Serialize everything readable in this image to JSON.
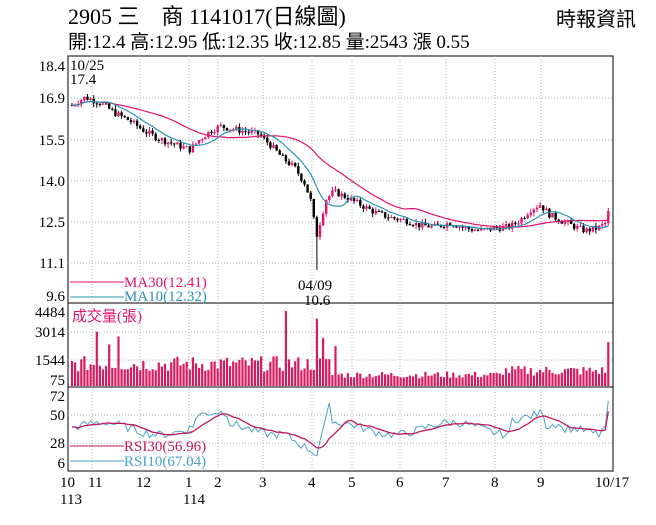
{
  "header": {
    "title": "2905 三　商 1141017(日線圖)",
    "source": "時報資訊",
    "ohlc": "開:12.4 高:12.95 低:12.35 收:12.85 量:2543 漲 0.55"
  },
  "colors": {
    "up": "#e0136f",
    "down": "#000000",
    "ma30": "#e0136f",
    "ma10": "#2a93b8",
    "rsi30": "#c2185b",
    "rsi10": "#4aa3c8",
    "volume": "#d81b60",
    "grid": "#b0b0b0"
  },
  "chart_data": [
    {
      "type": "candlestick",
      "panel": "price",
      "y_ticks": [
        "18.4",
        "16.9",
        "15.5",
        "14.0",
        "12.5",
        "11.1",
        "9.6"
      ],
      "ylim": [
        9.6,
        18.4
      ],
      "x_tick_labels": [
        "10",
        "11",
        "12",
        "1",
        "2",
        "3",
        "4",
        "5",
        "6",
        "7",
        "8",
        "9",
        "10/17"
      ],
      "x_year_labels": [
        "113",
        "114"
      ],
      "annotations": [
        {
          "date": "10/25",
          "value": "17.4"
        },
        {
          "date": "04/09",
          "value": "10.6"
        }
      ],
      "legend": [
        {
          "name": "MA30",
          "label": "MA30(12.41)"
        },
        {
          "name": "MA10",
          "label": "MA10(12.32)"
        }
      ],
      "key_points": [
        {
          "x": "113/10",
          "close": 17.0
        },
        {
          "x": "113/11",
          "close": 16.6
        },
        {
          "x": "113/12",
          "close": 15.6
        },
        {
          "x": "114/01",
          "close": 15.3
        },
        {
          "x": "114/02",
          "close": 16.1
        },
        {
          "x": "114/03",
          "close": 15.8
        },
        {
          "x": "114/04/09",
          "low": 10.6
        },
        {
          "x": "114/05",
          "close": 13.4
        },
        {
          "x": "114/06",
          "close": 12.7
        },
        {
          "x": "114/07",
          "close": 12.2
        },
        {
          "x": "114/08",
          "close": 12.3
        },
        {
          "x": "114/09",
          "close": 12.9
        },
        {
          "x": "114/10/17",
          "close": 12.85
        }
      ]
    },
    {
      "type": "bar",
      "panel": "volume",
      "title": "成交量(張)",
      "y_ticks": [
        "4484",
        "3014",
        "1544",
        "75"
      ],
      "ylim": [
        75,
        4484
      ],
      "peaks": [
        {
          "x": "114/03",
          "value": 4484
        },
        {
          "x": "114/04/09",
          "value": 4000
        },
        {
          "x": "113/10",
          "value": 3200
        },
        {
          "x": "114/10/17",
          "value": 2543
        }
      ]
    },
    {
      "type": "line",
      "panel": "rsi",
      "y_ticks": [
        "72",
        "50",
        "28",
        "6"
      ],
      "ylim": [
        6,
        72
      ],
      "series": [
        {
          "name": "RSI30",
          "label": "RSI30(56.96)",
          "last": 56.96
        },
        {
          "name": "RSI10",
          "label": "RSI10(67.04)",
          "last": 67.04
        }
      ]
    }
  ]
}
